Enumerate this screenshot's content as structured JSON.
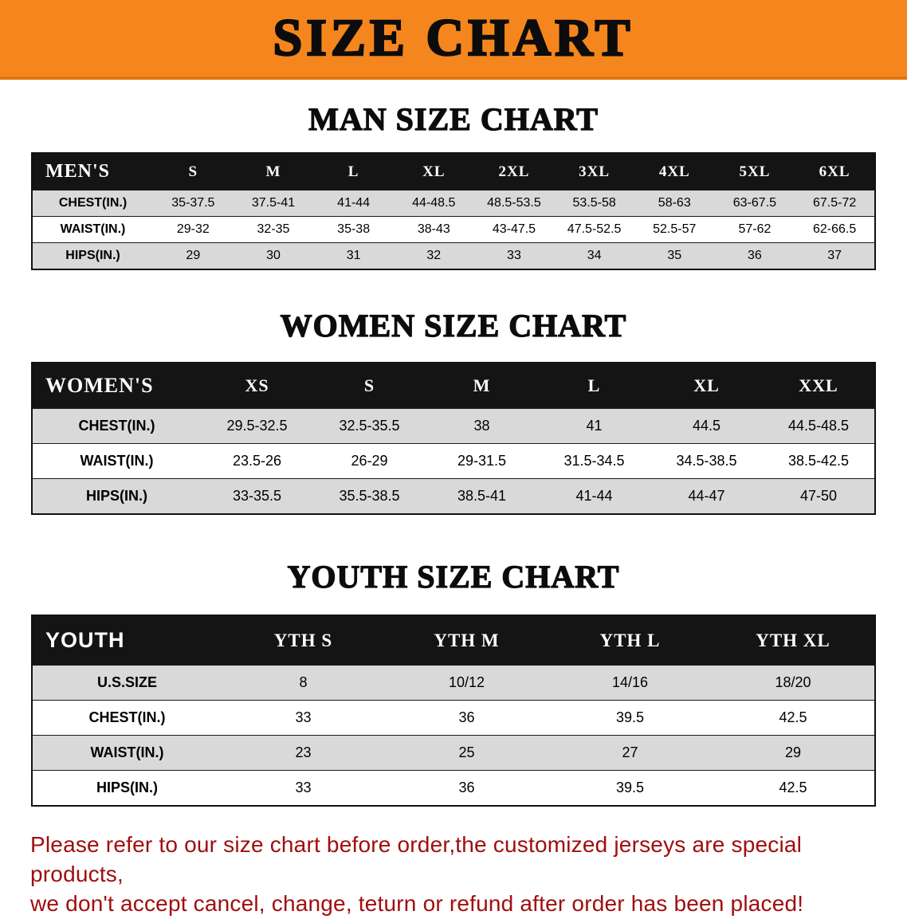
{
  "banner": {
    "title": "SIZE CHART"
  },
  "colors": {
    "banner_bg": "#f5861d",
    "header_bg": "#141414",
    "row_stripe": "#d9d9d9",
    "notice_text": "#a00e0e"
  },
  "sections": [
    {
      "id": "men",
      "heading": "MAN SIZE CHART",
      "table": {
        "header": [
          "MEN'S",
          "S",
          "M",
          "L",
          "XL",
          "2XL",
          "3XL",
          "4XL",
          "5XL",
          "6XL"
        ],
        "rows": [
          {
            "label": "CHEST(IN.)",
            "values": [
              "35-37.5",
              "37.5-41",
              "41-44",
              "44-48.5",
              "48.5-53.5",
              "53.5-58",
              "58-63",
              "63-67.5",
              "67.5-72"
            ]
          },
          {
            "label": "WAIST(IN.)",
            "values": [
              "29-32",
              "32-35",
              "35-38",
              "38-43",
              "43-47.5",
              "47.5-52.5",
              "52.5-57",
              "57-62",
              "62-66.5"
            ]
          },
          {
            "label": "HIPS(IN.)",
            "values": [
              "29",
              "30",
              "31",
              "32",
              "33",
              "34",
              "35",
              "36",
              "37"
            ]
          }
        ]
      }
    },
    {
      "id": "women",
      "heading": "WOMEN SIZE CHART",
      "table": {
        "header": [
          "WOMEN'S",
          "XS",
          "S",
          "M",
          "L",
          "XL",
          "XXL"
        ],
        "rows": [
          {
            "label": "CHEST(IN.)",
            "values": [
              "29.5-32.5",
              "32.5-35.5",
              "38",
              "41",
              "44.5",
              "44.5-48.5"
            ]
          },
          {
            "label": "WAIST(IN.)",
            "values": [
              "23.5-26",
              "26-29",
              "29-31.5",
              "31.5-34.5",
              "34.5-38.5",
              "38.5-42.5"
            ]
          },
          {
            "label": "HIPS(IN.)",
            "values": [
              "33-35.5",
              "35.5-38.5",
              "38.5-41",
              "41-44",
              "44-47",
              "47-50"
            ]
          }
        ]
      }
    },
    {
      "id": "youth",
      "heading": "YOUTH SIZE CHART",
      "table": {
        "header": [
          "YOUTH",
          "YTH S",
          "YTH M",
          "YTH L",
          "YTH XL"
        ],
        "rows": [
          {
            "label": "U.S.SIZE",
            "values": [
              "8",
              "10/12",
              "14/16",
              "18/20"
            ]
          },
          {
            "label": "CHEST(IN.)",
            "values": [
              "33",
              "36",
              "39.5",
              "42.5"
            ]
          },
          {
            "label": "WAIST(IN.)",
            "values": [
              "23",
              "25",
              "27",
              "29"
            ]
          },
          {
            "label": "HIPS(IN.)",
            "values": [
              "33",
              "36",
              "39.5",
              "42.5"
            ]
          }
        ]
      }
    }
  ],
  "footer": {
    "line1": "Please refer to our size chart before order,the customized jerseys are special products,",
    "line2": "we don't accept cancel, change, teturn or refund after order has been placed!"
  }
}
